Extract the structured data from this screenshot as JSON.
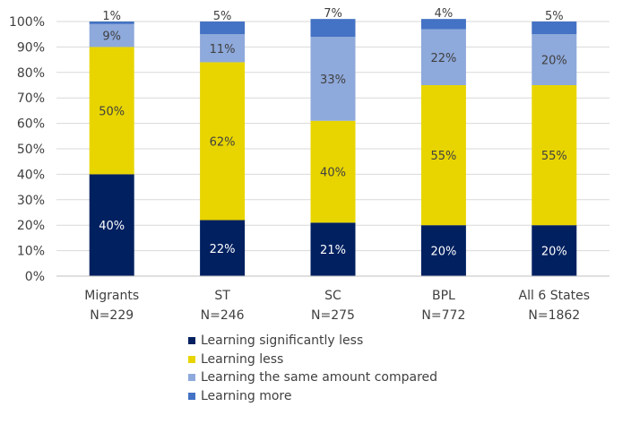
{
  "chart_data": {
    "type": "bar",
    "stacked": true,
    "percent": true,
    "categories": [
      "Migrants\nN=229",
      "ST\nN=246",
      "SC\nN=275",
      "BPL\nN=772",
      "All 6 States\nN=1862"
    ],
    "series": [
      {
        "name": "Learning significantly less",
        "color": "#002060",
        "label_color": "#ffffff",
        "values": [
          40,
          22,
          21,
          20,
          20
        ],
        "labels": [
          "40%",
          "22%",
          "21%",
          "20%",
          "20%"
        ]
      },
      {
        "name": "Learning less",
        "color": "#E8D500",
        "label_color": "#404040",
        "values": [
          50,
          62,
          40,
          55,
          55
        ],
        "labels": [
          "50%",
          "62%",
          "40%",
          "55%",
          "55%"
        ]
      },
      {
        "name": "Learning the same amount compared",
        "color": "#8EA9DB",
        "label_color": "#404040",
        "values": [
          9,
          11,
          33,
          22,
          20
        ],
        "labels": [
          "9%",
          "11%",
          "33%",
          "22%",
          "20%"
        ]
      },
      {
        "name": "Learning more",
        "color": "#4472C4",
        "label_color": "#404040",
        "values": [
          1,
          5,
          7,
          4,
          5
        ],
        "labels": [
          "1%",
          "5%",
          "7%",
          "4%",
          "5%"
        ]
      }
    ],
    "y_ticks": [
      "0%",
      "10%",
      "20%",
      "30%",
      "40%",
      "50%",
      "60%",
      "70%",
      "80%",
      "90%",
      "100%"
    ],
    "ylim": [
      0,
      100
    ],
    "grid": true,
    "legend_position": "bottom"
  }
}
